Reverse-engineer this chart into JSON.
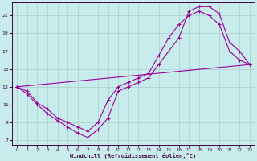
{
  "xlabel": "Windchill (Refroidissement éolien,°C)",
  "background_color": "#c8ecec",
  "line_color": "#990099",
  "grid_color": "#aacccc",
  "xlim": [
    -0.5,
    23.5
  ],
  "ylim": [
    6.5,
    22.5
  ],
  "xticks": [
    0,
    1,
    2,
    3,
    4,
    5,
    6,
    7,
    8,
    9,
    10,
    11,
    12,
    13,
    14,
    15,
    16,
    17,
    18,
    19,
    20,
    21,
    22,
    23
  ],
  "yticks": [
    7,
    9,
    11,
    13,
    15,
    17,
    19,
    21
  ],
  "line1_x": [
    0,
    1,
    2,
    3,
    4,
    5,
    6,
    7,
    8,
    9,
    10,
    11,
    12,
    13,
    14,
    15,
    16,
    17,
    18,
    19,
    20,
    21,
    22,
    23
  ],
  "line1_y": [
    13.0,
    12.5,
    11.2,
    10.5,
    9.5,
    9.0,
    8.5,
    8.0,
    9.0,
    11.5,
    13.0,
    13.5,
    14.0,
    14.5,
    16.5,
    18.5,
    20.0,
    21.0,
    21.5,
    21.0,
    20.0,
    17.0,
    16.0,
    15.5
  ],
  "line2_x": [
    0,
    1,
    2,
    3,
    4,
    5,
    6,
    7,
    8,
    9,
    10,
    11,
    12,
    13,
    14,
    15,
    16,
    17,
    18,
    19,
    20,
    21,
    22,
    23
  ],
  "line2_y": [
    13.0,
    12.2,
    11.0,
    10.0,
    9.2,
    8.5,
    7.8,
    7.3,
    8.2,
    9.5,
    12.5,
    13.0,
    13.5,
    14.0,
    15.5,
    17.0,
    18.5,
    21.5,
    22.0,
    22.0,
    21.2,
    18.0,
    17.0,
    15.5
  ],
  "line3_x": [
    0,
    23
  ],
  "line3_y": [
    13.0,
    15.5
  ],
  "marker_style": "+"
}
